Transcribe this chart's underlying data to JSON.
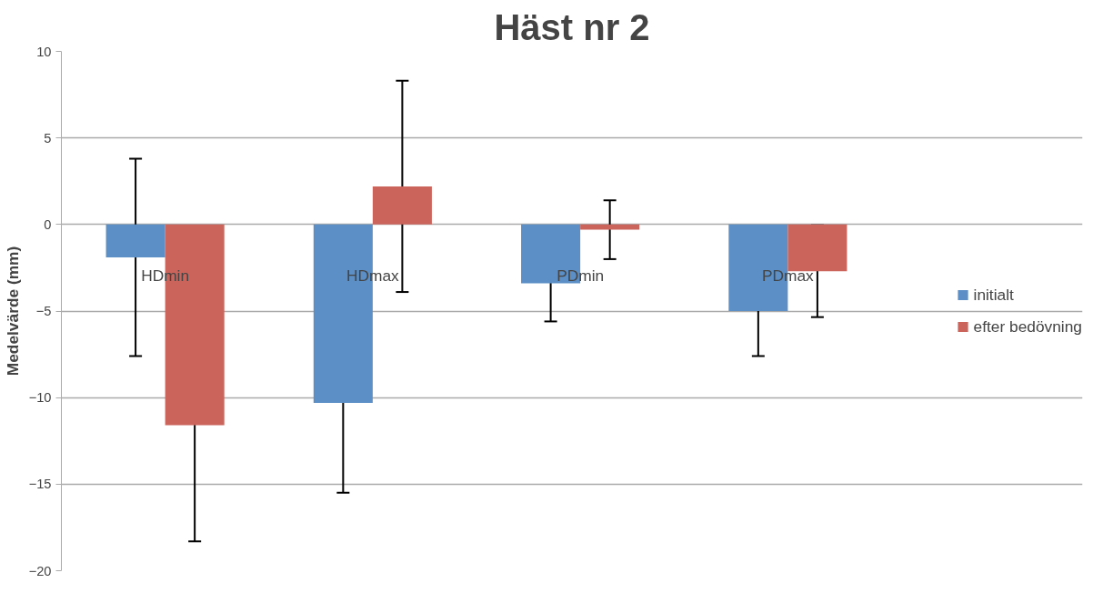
{
  "chart_data": {
    "type": "bar",
    "title": "Häst nr 2",
    "ylabel": "Medelvärde (mm)",
    "categories": [
      "HDmin",
      "HDmax",
      "PDmin",
      "PDmax"
    ],
    "series": [
      {
        "name": "initialt",
        "color": "#5b8fc5",
        "values": [
          -1.9,
          -10.3,
          -3.4,
          -5.0
        ],
        "errors": [
          5.7,
          5.2,
          2.2,
          2.6
        ]
      },
      {
        "name": "efter bedövning",
        "color": "#cb655c",
        "values": [
          -11.6,
          2.2,
          -0.3,
          -2.7
        ],
        "errors": [
          6.7,
          6.1,
          1.7,
          2.65
        ]
      }
    ],
    "ylim": [
      -20,
      10
    ],
    "yticks": [
      -20,
      -15,
      -10,
      -5,
      0,
      5,
      10
    ],
    "grid": "y",
    "legend": "right"
  }
}
